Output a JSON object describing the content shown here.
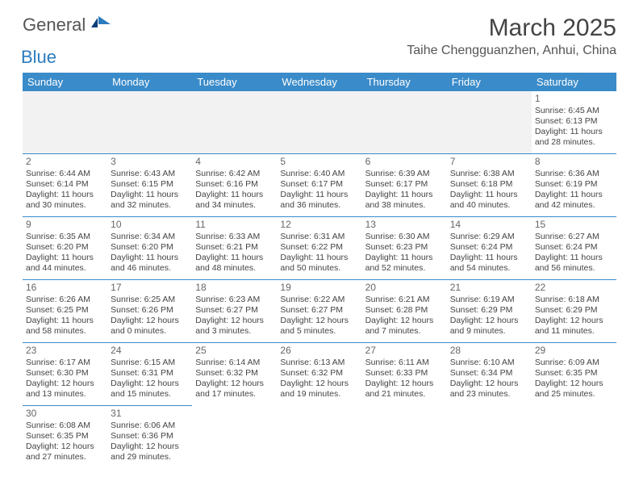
{
  "logo": {
    "word1": "General",
    "word2": "Blue"
  },
  "title": "March 2025",
  "location": "Taihe Chengguanzhen, Anhui, China",
  "colors": {
    "header_bg": "#3a8bc9",
    "header_fg": "#ffffff",
    "rule": "#3a8bc9",
    "blank_bg": "#f2f2f2",
    "text": "#444444",
    "logo_gray": "#555555",
    "logo_blue": "#2b7bbf"
  },
  "typography": {
    "title_fontsize": 30,
    "location_fontsize": 16,
    "header_fontsize": 13,
    "cell_fontsize": 10.5,
    "daynum_fontsize": 12
  },
  "weekdays": [
    "Sunday",
    "Monday",
    "Tuesday",
    "Wednesday",
    "Thursday",
    "Friday",
    "Saturday"
  ],
  "weeks": [
    [
      null,
      null,
      null,
      null,
      null,
      null,
      {
        "n": "1",
        "sr": "Sunrise: 6:45 AM",
        "ss": "Sunset: 6:13 PM",
        "dl": "Daylight: 11 hours and 28 minutes."
      }
    ],
    [
      {
        "n": "2",
        "sr": "Sunrise: 6:44 AM",
        "ss": "Sunset: 6:14 PM",
        "dl": "Daylight: 11 hours and 30 minutes."
      },
      {
        "n": "3",
        "sr": "Sunrise: 6:43 AM",
        "ss": "Sunset: 6:15 PM",
        "dl": "Daylight: 11 hours and 32 minutes."
      },
      {
        "n": "4",
        "sr": "Sunrise: 6:42 AM",
        "ss": "Sunset: 6:16 PM",
        "dl": "Daylight: 11 hours and 34 minutes."
      },
      {
        "n": "5",
        "sr": "Sunrise: 6:40 AM",
        "ss": "Sunset: 6:17 PM",
        "dl": "Daylight: 11 hours and 36 minutes."
      },
      {
        "n": "6",
        "sr": "Sunrise: 6:39 AM",
        "ss": "Sunset: 6:17 PM",
        "dl": "Daylight: 11 hours and 38 minutes."
      },
      {
        "n": "7",
        "sr": "Sunrise: 6:38 AM",
        "ss": "Sunset: 6:18 PM",
        "dl": "Daylight: 11 hours and 40 minutes."
      },
      {
        "n": "8",
        "sr": "Sunrise: 6:36 AM",
        "ss": "Sunset: 6:19 PM",
        "dl": "Daylight: 11 hours and 42 minutes."
      }
    ],
    [
      {
        "n": "9",
        "sr": "Sunrise: 6:35 AM",
        "ss": "Sunset: 6:20 PM",
        "dl": "Daylight: 11 hours and 44 minutes."
      },
      {
        "n": "10",
        "sr": "Sunrise: 6:34 AM",
        "ss": "Sunset: 6:20 PM",
        "dl": "Daylight: 11 hours and 46 minutes."
      },
      {
        "n": "11",
        "sr": "Sunrise: 6:33 AM",
        "ss": "Sunset: 6:21 PM",
        "dl": "Daylight: 11 hours and 48 minutes."
      },
      {
        "n": "12",
        "sr": "Sunrise: 6:31 AM",
        "ss": "Sunset: 6:22 PM",
        "dl": "Daylight: 11 hours and 50 minutes."
      },
      {
        "n": "13",
        "sr": "Sunrise: 6:30 AM",
        "ss": "Sunset: 6:23 PM",
        "dl": "Daylight: 11 hours and 52 minutes."
      },
      {
        "n": "14",
        "sr": "Sunrise: 6:29 AM",
        "ss": "Sunset: 6:24 PM",
        "dl": "Daylight: 11 hours and 54 minutes."
      },
      {
        "n": "15",
        "sr": "Sunrise: 6:27 AM",
        "ss": "Sunset: 6:24 PM",
        "dl": "Daylight: 11 hours and 56 minutes."
      }
    ],
    [
      {
        "n": "16",
        "sr": "Sunrise: 6:26 AM",
        "ss": "Sunset: 6:25 PM",
        "dl": "Daylight: 11 hours and 58 minutes."
      },
      {
        "n": "17",
        "sr": "Sunrise: 6:25 AM",
        "ss": "Sunset: 6:26 PM",
        "dl": "Daylight: 12 hours and 0 minutes."
      },
      {
        "n": "18",
        "sr": "Sunrise: 6:23 AM",
        "ss": "Sunset: 6:27 PM",
        "dl": "Daylight: 12 hours and 3 minutes."
      },
      {
        "n": "19",
        "sr": "Sunrise: 6:22 AM",
        "ss": "Sunset: 6:27 PM",
        "dl": "Daylight: 12 hours and 5 minutes."
      },
      {
        "n": "20",
        "sr": "Sunrise: 6:21 AM",
        "ss": "Sunset: 6:28 PM",
        "dl": "Daylight: 12 hours and 7 minutes."
      },
      {
        "n": "21",
        "sr": "Sunrise: 6:19 AM",
        "ss": "Sunset: 6:29 PM",
        "dl": "Daylight: 12 hours and 9 minutes."
      },
      {
        "n": "22",
        "sr": "Sunrise: 6:18 AM",
        "ss": "Sunset: 6:29 PM",
        "dl": "Daylight: 12 hours and 11 minutes."
      }
    ],
    [
      {
        "n": "23",
        "sr": "Sunrise: 6:17 AM",
        "ss": "Sunset: 6:30 PM",
        "dl": "Daylight: 12 hours and 13 minutes."
      },
      {
        "n": "24",
        "sr": "Sunrise: 6:15 AM",
        "ss": "Sunset: 6:31 PM",
        "dl": "Daylight: 12 hours and 15 minutes."
      },
      {
        "n": "25",
        "sr": "Sunrise: 6:14 AM",
        "ss": "Sunset: 6:32 PM",
        "dl": "Daylight: 12 hours and 17 minutes."
      },
      {
        "n": "26",
        "sr": "Sunrise: 6:13 AM",
        "ss": "Sunset: 6:32 PM",
        "dl": "Daylight: 12 hours and 19 minutes."
      },
      {
        "n": "27",
        "sr": "Sunrise: 6:11 AM",
        "ss": "Sunset: 6:33 PM",
        "dl": "Daylight: 12 hours and 21 minutes."
      },
      {
        "n": "28",
        "sr": "Sunrise: 6:10 AM",
        "ss": "Sunset: 6:34 PM",
        "dl": "Daylight: 12 hours and 23 minutes."
      },
      {
        "n": "29",
        "sr": "Sunrise: 6:09 AM",
        "ss": "Sunset: 6:35 PM",
        "dl": "Daylight: 12 hours and 25 minutes."
      }
    ],
    [
      {
        "n": "30",
        "sr": "Sunrise: 6:08 AM",
        "ss": "Sunset: 6:35 PM",
        "dl": "Daylight: 12 hours and 27 minutes."
      },
      {
        "n": "31",
        "sr": "Sunrise: 6:06 AM",
        "ss": "Sunset: 6:36 PM",
        "dl": "Daylight: 12 hours and 29 minutes."
      },
      null,
      null,
      null,
      null,
      null
    ]
  ]
}
